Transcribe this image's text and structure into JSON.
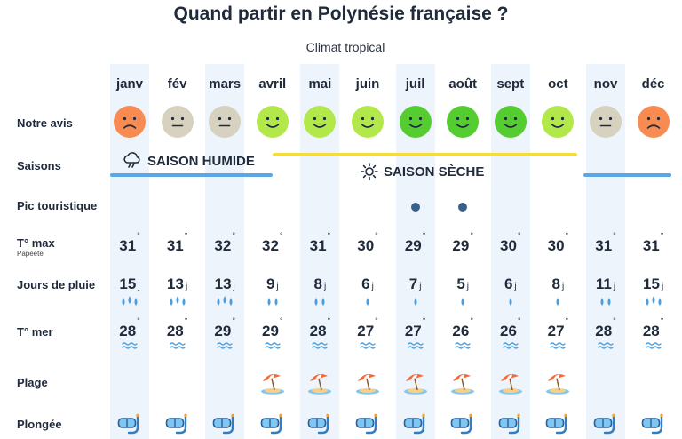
{
  "title": "Quand partir en Polynésie française ?",
  "subtitle": "Climat tropical",
  "row_labels": {
    "avis": "Notre avis",
    "saisons": "Saisons",
    "pic": "Pic touristique",
    "tmax": "T° max",
    "tmax_sub": "Papeete",
    "pluie": "Jours de pluie",
    "mer": "T° mer",
    "plage": "Plage",
    "plongee": "Plongée"
  },
  "seasons": {
    "humide": "SAISON HUMIDE",
    "seche": "SAISON SÈCHE"
  },
  "units": {
    "degree": "°",
    "day": "j"
  },
  "colors": {
    "highlight_column": "#eef4fb",
    "wet_season": "#5aa6e8",
    "dry_season": "#f5dc3a",
    "face_bad": "#f78b52",
    "face_neutral": "#d6d2bf",
    "face_good": "#b3e84a",
    "face_best": "#55cc30",
    "peak_dot": "#3a5f8a",
    "water": "#4b9fe0"
  },
  "chart_data": {
    "type": "table",
    "months": [
      "janv",
      "fév",
      "mars",
      "avril",
      "mai",
      "juin",
      "juil",
      "août",
      "sept",
      "oct",
      "nov",
      "déc"
    ],
    "rating": [
      "bad",
      "neutral",
      "neutral",
      "good",
      "good",
      "good",
      "best",
      "best",
      "best",
      "good",
      "neutral",
      "bad"
    ],
    "season": [
      "humide",
      "humide",
      "humide",
      "seche",
      "seche",
      "seche",
      "seche",
      "seche",
      "seche",
      "seche",
      "humide",
      "humide"
    ],
    "tourist_peak": [
      false,
      false,
      false,
      false,
      false,
      false,
      true,
      true,
      false,
      false,
      false,
      false
    ],
    "tmax": [
      31,
      31,
      32,
      32,
      31,
      30,
      29,
      29,
      30,
      30,
      31,
      31
    ],
    "rain_days": [
      15,
      13,
      13,
      9,
      8,
      6,
      7,
      5,
      6,
      8,
      11,
      15
    ],
    "rain_level": [
      3,
      3,
      3,
      2,
      2,
      1,
      1,
      1,
      1,
      1,
      2,
      3
    ],
    "sea_temp": [
      28,
      28,
      29,
      29,
      28,
      27,
      27,
      26,
      26,
      27,
      28,
      28
    ],
    "beach": [
      false,
      false,
      false,
      true,
      true,
      true,
      true,
      true,
      true,
      true,
      false,
      false
    ],
    "diving": [
      true,
      true,
      true,
      true,
      true,
      true,
      true,
      true,
      true,
      true,
      true,
      true
    ]
  }
}
